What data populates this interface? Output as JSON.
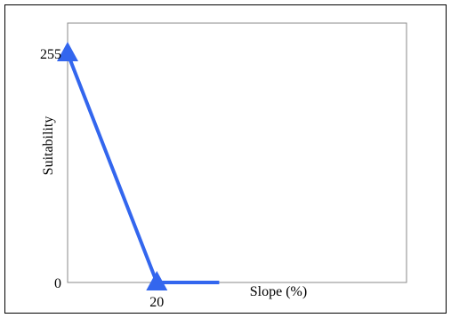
{
  "chart_data": {
    "type": "line",
    "title": "",
    "xlabel": "Slope (%)",
    "ylabel": "Suitability",
    "x_ticks": [
      20
    ],
    "y_ticks": [
      0,
      255
    ],
    "x_range": [
      0,
      76
    ],
    "y_range": [
      0,
      255
    ],
    "grid": false,
    "series": [
      {
        "x": [
          0,
          20,
          34
        ],
        "y": [
          255,
          0,
          0
        ],
        "color": "#3366ee",
        "markers": [
          {
            "x": 0,
            "y": 255,
            "shape": "triangle"
          },
          {
            "x": 20,
            "y": 0,
            "shape": "triangle"
          }
        ]
      }
    ]
  }
}
